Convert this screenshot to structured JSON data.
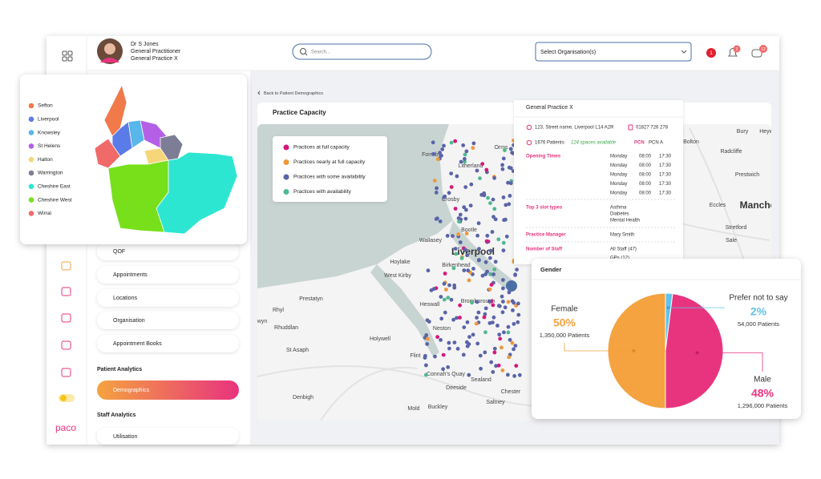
{
  "header": {
    "user_name": "Dr S Jones",
    "user_role": "General Practitioner",
    "user_org": "General Practice X",
    "search_placeholder": "Search...",
    "org_select": "Select Organisation(s)",
    "badges": [
      "1",
      "2",
      "12"
    ]
  },
  "region_map": {
    "legend": [
      {
        "name": "Sefton",
        "color": "#f07a4a"
      },
      {
        "name": "Liverpool",
        "color": "#5b7be8"
      },
      {
        "name": "Knowsley",
        "color": "#58b6ea"
      },
      {
        "name": "St Helens",
        "color": "#b460e6"
      },
      {
        "name": "Halton",
        "color": "#f5d77a"
      },
      {
        "name": "Warrington",
        "color": "#7d7e96"
      },
      {
        "name": "Cheshire East",
        "color": "#2de6d2"
      },
      {
        "name": "Cheshire West",
        "color": "#77e01a"
      },
      {
        "name": "Wirral",
        "color": "#f06a6a"
      }
    ]
  },
  "sidebar": {
    "menu": [
      "QOF",
      "Appointments",
      "Locations",
      "Organisation",
      "Appointment Books"
    ],
    "patient_section": "Patient Analytics",
    "active_item": "Demographics",
    "staff_section": "Staff Analytics",
    "staff_menu": [
      "Utilisation"
    ],
    "logo": "paco"
  },
  "breadcrumb": "Back to Patient Demographics",
  "capacity_map": {
    "title": "Practice Capacity",
    "legend": [
      {
        "name": "Practices at full capacity",
        "color": "#d6177a"
      },
      {
        "name": "Practices nearly at full capacity",
        "color": "#f0983a"
      },
      {
        "name": "Practices with some availability",
        "color": "#5a64a8"
      },
      {
        "name": "Practices with availability",
        "color": "#4fb98f"
      }
    ],
    "places": [
      "Formby",
      "Orms",
      "Crosby",
      "Litherland",
      "Bootle",
      "Wallasey",
      "Liverpool",
      "Birkenhead",
      "Hoylake",
      "West Kirby",
      "Bromborough",
      "Prestatyn",
      "Heswall",
      "Neston",
      "Rhyl",
      "Rhuddlan",
      "wyn",
      "Holywell",
      "St Asaph",
      "Flint",
      "Connah's Quay",
      "Sealand",
      "Deeside",
      "Chester",
      "Denbigh",
      "Mold",
      "Buckley",
      "Saltney",
      "Bolton",
      "Bury",
      "Heyw",
      "Radcliffe",
      "Prestwich",
      "Eccles",
      "Manche",
      "Stretford",
      "Sale"
    ]
  },
  "practice_card": {
    "title": "General Practice X",
    "address": "123, Street name, Liverpool L14 A2R",
    "phone": "01827 726 278",
    "patients": "1676 Patients",
    "spaces": "124 spaces available",
    "pcn_label": "PCN",
    "pcn": "PCN A",
    "opening_label": "Opening Times",
    "opening_times": [
      [
        "Monday",
        "08:00",
        "17:30"
      ],
      [
        "Monday",
        "08:00",
        "17:30"
      ],
      [
        "Monday",
        "08:00",
        "17:30"
      ],
      [
        "Monday",
        "08:00",
        "17:30"
      ],
      [
        "Monday",
        "08:00",
        "17:30"
      ]
    ],
    "slots_label": "Top 3 slot types",
    "slots": [
      "Asthma",
      "Diabetes",
      "Mental Health"
    ],
    "manager_label": "Practice Manager",
    "manager": "Mary Smith",
    "staff_label": "Number of Staff",
    "staff": [
      "All Staff (47)",
      "GPs (12)"
    ]
  },
  "chart_data": {
    "type": "pie",
    "title": "Gender",
    "categories": [
      "Female",
      "Prefer not to say",
      "Male"
    ],
    "values": [
      50,
      2,
      48
    ],
    "value_labels": [
      "50%",
      "2%",
      "48%"
    ],
    "colors": [
      "#f4a340",
      "#62c3ea",
      "#e8347f"
    ],
    "patient_counts": [
      "1,350,000 Patients",
      "54,000 Patients",
      "1,296,000 Patients"
    ]
  }
}
